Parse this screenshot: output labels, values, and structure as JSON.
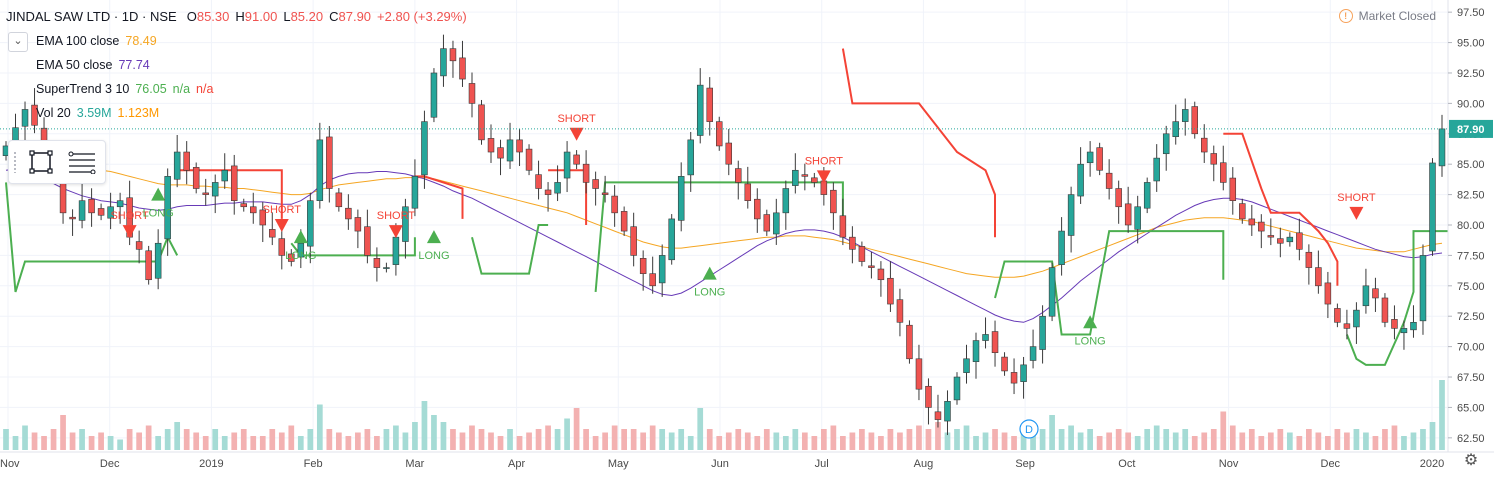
{
  "header": {
    "symbol_line": "JINDAL SAW LTD · 1D · NSE",
    "ohlc": [
      {
        "label": "O",
        "value": "85.30"
      },
      {
        "label": "H",
        "value": "91.00"
      },
      {
        "label": "L",
        "value": "85.20"
      },
      {
        "label": "C",
        "value": "87.90"
      }
    ],
    "change": "+2.80 (+3.29%)",
    "market_status": "Market Closed"
  },
  "indicators": {
    "ema100": {
      "name": "EMA 100 close",
      "value": "78.49",
      "color": "#f5a623"
    },
    "ema50": {
      "name": "EMA 50 close",
      "value": "77.74",
      "color": "#673ab7"
    },
    "supertrend": {
      "name": "SuperTrend 3 10",
      "v1": "76.05",
      "v2": "n/a",
      "v3": "n/a",
      "up_color": "#4caf50",
      "down_color": "#f44336"
    },
    "vol": {
      "name": "Vol 20",
      "v1": "3.59M",
      "v2": "1.123M",
      "v1_color": "#26a69a",
      "v2_color": "#ff9800"
    }
  },
  "toolbar": {
    "chevron_icon": "chevron-down-icon",
    "rect_tool_icon": "rectangle-tool-icon",
    "lines_tool_icon": "horizontal-lines-tool-icon"
  },
  "settings_icon": "gear-icon",
  "dividend_marker": "D",
  "last_price_label": "87.90",
  "colors": {
    "up": "#26a69a",
    "down": "#ef5350",
    "vol_up": "#a5dbd5",
    "vol_down": "#f3b1b1",
    "long": "#4caf50",
    "short": "#f44336",
    "ema100": "#f5a623",
    "ema50": "#673ab7"
  },
  "chart_data": {
    "type": "candlestick",
    "ylim": [
      61.5,
      98.5
    ],
    "y_ticks": [
      62.5,
      65.0,
      67.5,
      70.0,
      72.5,
      75.0,
      77.5,
      80.0,
      82.5,
      85.0,
      87.5,
      90.0,
      92.5,
      95.0,
      97.5
    ],
    "x_month_labels": [
      "Nov",
      "Dec",
      "2019",
      "Feb",
      "Mar",
      "Apr",
      "May",
      "Jun",
      "Jul",
      "Aug",
      "Sep",
      "Oct",
      "Nov",
      "Dec",
      "2020"
    ],
    "last_close": 87.9,
    "closes": [
      86.5,
      88.0,
      89.5,
      88.2,
      86.0,
      84.0,
      81.0,
      80.5,
      82.0,
      81.0,
      80.8,
      81.5,
      82.0,
      79.0,
      78.0,
      75.5,
      78.5,
      84.0,
      86.0,
      84.5,
      83.0,
      82.5,
      83.5,
      84.5,
      82.0,
      81.5,
      81.0,
      80.0,
      79.0,
      77.5,
      77.0,
      78.5,
      82.0,
      87.0,
      83.0,
      81.5,
      80.5,
      79.5,
      77.5,
      76.5,
      76.5,
      79.0,
      81.5,
      84.0,
      88.5,
      92.5,
      94.5,
      93.5,
      92.0,
      90.0,
      87.0,
      86.0,
      85.5,
      87.0,
      86.0,
      84.5,
      83.0,
      82.5,
      83.5,
      86.0,
      85.0,
      83.5,
      83.0,
      82.5,
      81.0,
      79.5,
      77.5,
      76.0,
      75.0,
      77.5,
      80.5,
      84.0,
      87.0,
      91.5,
      88.5,
      86.5,
      85.0,
      83.5,
      82.0,
      80.5,
      79.5,
      81.0,
      83.0,
      84.5,
      84.0,
      83.5,
      82.5,
      81.0,
      79.0,
      78.0,
      77.0,
      76.5,
      75.5,
      73.5,
      72.0,
      69.0,
      66.5,
      65.0,
      64.0,
      65.5,
      67.5,
      69.0,
      70.5,
      71.0,
      69.5,
      68.0,
      67.0,
      68.5,
      70.0,
      72.5,
      76.5,
      79.5,
      82.5,
      85.0,
      86.0,
      84.5,
      83.0,
      81.5,
      80.0,
      81.5,
      83.5,
      85.5,
      87.5,
      88.5,
      89.5,
      87.5,
      86.0,
      85.0,
      83.5,
      82.0,
      80.5,
      80.0,
      79.5,
      79.0,
      78.5,
      79.0,
      78.0,
      76.5,
      75.0,
      73.5,
      72.0,
      71.5,
      73.0,
      75.0,
      74.0,
      72.0,
      71.5,
      71.5,
      72.0,
      77.5,
      85.1,
      87.9
    ],
    "ema50": [
      84.5,
      84.6,
      84.5,
      84.2,
      83.8,
      83.4,
      83.0,
      82.7,
      82.4,
      82.2,
      82.0,
      81.9,
      81.8,
      81.6,
      81.4,
      81.3,
      81.2,
      81.3,
      81.5,
      81.6,
      81.6,
      81.6,
      81.7,
      81.8,
      81.8,
      81.9,
      81.9,
      81.9,
      81.8,
      81.7,
      81.7,
      82.0,
      82.5,
      83.2,
      83.7,
      84.0,
      84.2,
      84.3,
      84.3,
      84.4,
      84.4,
      84.3,
      84.2,
      84.0,
      83.8,
      83.5,
      83.2,
      82.8,
      82.5,
      82.2,
      81.8,
      81.4,
      81.0,
      80.6,
      80.2,
      79.8,
      79.4,
      79.0,
      78.6,
      78.2,
      77.8,
      77.4,
      77.0,
      76.6,
      76.2,
      75.8,
      75.4,
      75.0,
      74.6,
      74.3,
      74.2,
      74.4,
      74.8,
      75.3,
      75.8,
      76.3,
      76.8,
      77.3,
      77.8,
      78.3,
      78.7,
      79.0,
      79.3,
      79.5,
      79.6,
      79.6,
      79.5,
      79.3,
      79.0,
      78.6,
      78.2,
      77.8,
      77.4,
      77.0,
      76.6,
      76.2,
      75.8,
      75.4,
      75.0,
      74.6,
      74.2,
      73.8,
      73.4,
      73.0,
      72.6,
      72.3,
      72.1,
      72.0,
      72.3,
      72.8,
      73.4,
      74.0,
      74.7,
      75.4,
      76.0,
      76.6,
      77.2,
      77.8,
      78.3,
      78.8,
      79.3,
      79.8,
      80.3,
      80.8,
      81.2,
      81.6,
      81.9,
      82.1,
      82.2,
      82.2,
      82.1,
      81.9,
      81.6,
      81.3,
      81.0,
      80.7,
      80.4,
      80.1,
      79.8,
      79.5,
      79.2,
      78.9,
      78.6,
      78.3,
      78.0,
      77.8,
      77.6,
      77.4,
      77.3,
      77.4,
      77.6,
      77.7
    ],
    "ema100": [
      86.0,
      86.0,
      85.9,
      85.8,
      85.7,
      85.5,
      85.3,
      85.1,
      84.9,
      84.7,
      84.5,
      84.4,
      84.2,
      84.0,
      83.8,
      83.6,
      83.4,
      83.3,
      83.3,
      83.3,
      83.2,
      83.2,
      83.1,
      83.1,
      83.0,
      83.0,
      82.9,
      82.8,
      82.7,
      82.6,
      82.5,
      82.5,
      82.6,
      82.9,
      83.1,
      83.3,
      83.4,
      83.5,
      83.6,
      83.7,
      83.8,
      83.8,
      83.9,
      83.9,
      83.9,
      83.8,
      83.6,
      83.4,
      83.2,
      83.0,
      82.8,
      82.6,
      82.4,
      82.2,
      82.0,
      81.8,
      81.6,
      81.4,
      81.2,
      81.0,
      80.7,
      80.4,
      80.1,
      79.8,
      79.5,
      79.2,
      78.9,
      78.6,
      78.4,
      78.2,
      78.1,
      78.1,
      78.2,
      78.3,
      78.4,
      78.5,
      78.6,
      78.7,
      78.8,
      78.9,
      79.0,
      79.0,
      79.1,
      79.1,
      79.1,
      79.0,
      78.9,
      78.8,
      78.6,
      78.4,
      78.2,
      78.0,
      77.8,
      77.6,
      77.4,
      77.2,
      77.0,
      76.8,
      76.6,
      76.4,
      76.2,
      76.0,
      75.9,
      75.8,
      75.7,
      75.7,
      75.7,
      75.8,
      76.0,
      76.2,
      76.5,
      76.8,
      77.1,
      77.4,
      77.7,
      78.0,
      78.3,
      78.6,
      78.9,
      79.2,
      79.5,
      79.8,
      80.0,
      80.2,
      80.4,
      80.5,
      80.6,
      80.6,
      80.6,
      80.5,
      80.4,
      80.3,
      80.1,
      79.9,
      79.7,
      79.5,
      79.3,
      79.1,
      78.9,
      78.7,
      78.5,
      78.3,
      78.1,
      78.0,
      77.9,
      77.8,
      77.8,
      77.8,
      78.0,
      78.2,
      78.4,
      78.5
    ],
    "supertrend_segments": [
      {
        "dir": "long",
        "points": [
          [
            0,
            83.5
          ],
          [
            1,
            74.5
          ],
          [
            2,
            77.0
          ],
          [
            16,
            77.0
          ],
          [
            17,
            79.0
          ],
          [
            18,
            77.5
          ]
        ]
      },
      {
        "dir": "short",
        "points": [
          [
            18,
            84.5
          ],
          [
            19,
            84.5
          ],
          [
            22,
            84.5
          ],
          [
            25,
            84.5
          ],
          [
            29,
            84.5
          ],
          [
            29,
            80.5
          ]
        ]
      },
      {
        "dir": "long",
        "points": [
          [
            30,
            78.5
          ],
          [
            31,
            77.5
          ],
          [
            43,
            77.5
          ],
          [
            43,
            79.0
          ]
        ]
      },
      {
        "dir": "short",
        "points": [
          [
            43,
            84.0
          ],
          [
            44,
            84.0
          ],
          [
            48,
            83.0
          ],
          [
            48,
            80.5
          ]
        ]
      },
      {
        "dir": "long",
        "points": [
          [
            49,
            79.0
          ],
          [
            50,
            76.0
          ],
          [
            55,
            76.0
          ],
          [
            56,
            80.0
          ],
          [
            57,
            80.0
          ]
        ]
      },
      {
        "dir": "short",
        "points": [
          [
            57,
            84.5
          ],
          [
            61,
            84.5
          ],
          [
            61,
            80.0
          ]
        ]
      },
      {
        "dir": "long",
        "points": [
          [
            62,
            74.5
          ],
          [
            63,
            83.5
          ],
          [
            88,
            83.5
          ],
          [
            88,
            80.0
          ]
        ]
      },
      {
        "dir": "short",
        "points": [
          [
            88,
            94.5
          ],
          [
            89,
            90.0
          ],
          [
            96,
            90.0
          ],
          [
            100,
            86.0
          ],
          [
            103,
            84.5
          ],
          [
            104,
            82.5
          ],
          [
            104,
            79.0
          ]
        ]
      },
      {
        "dir": "long",
        "points": [
          [
            104,
            74.0
          ],
          [
            105,
            77.0
          ],
          [
            110,
            77.0
          ],
          [
            111,
            71.0
          ],
          [
            114,
            71.0
          ],
          [
            116,
            79.5
          ],
          [
            128,
            79.5
          ],
          [
            128,
            75.5
          ]
        ]
      },
      {
        "dir": "short",
        "points": [
          [
            128,
            87.5
          ],
          [
            130,
            87.5
          ],
          [
            132,
            83.0
          ],
          [
            133,
            81.0
          ],
          [
            136,
            81.0
          ],
          [
            138,
            79.5
          ],
          [
            139,
            78.5
          ],
          [
            140,
            77.0
          ],
          [
            140,
            75.0
          ]
        ]
      },
      {
        "dir": "long",
        "points": [
          [
            141,
            71.0
          ],
          [
            142,
            69.0
          ],
          [
            143,
            68.5
          ],
          [
            145,
            68.5
          ],
          [
            147,
            72.0
          ],
          [
            148,
            74.5
          ],
          [
            148,
            79.5
          ],
          [
            152,
            79.5
          ],
          [
            155,
            79.5
          ]
        ]
      }
    ],
    "signals": [
      {
        "type": "short",
        "i": 13,
        "price": 79.5,
        "label": "SHORT"
      },
      {
        "type": "long",
        "i": 16,
        "price": 82.5,
        "label": "LONG"
      },
      {
        "type": "short",
        "i": 29,
        "price": 80.0,
        "label": "SHORT"
      },
      {
        "type": "long",
        "i": 31,
        "price": 79.0,
        "label": "LONG"
      },
      {
        "type": "short",
        "i": 41,
        "price": 79.5,
        "label": "SHORT"
      },
      {
        "type": "long",
        "i": 45,
        "price": 79.0,
        "label": "LONG"
      },
      {
        "type": "short",
        "i": 60,
        "price": 87.5,
        "label": "SHORT"
      },
      {
        "type": "long",
        "i": 74,
        "price": 76.0,
        "label": "LONG"
      },
      {
        "type": "short",
        "i": 86,
        "price": 84.0,
        "label": "SHORT"
      },
      {
        "type": "long",
        "i": 114,
        "price": 72.0,
        "label": "LONG"
      },
      {
        "type": "short",
        "i": 142,
        "price": 81.0,
        "label": "SHORT"
      },
      {
        "type": "long",
        "i": 157,
        "price": 72.0,
        "label": "LONG"
      }
    ],
    "volume_relative": [
      0.3,
      0.2,
      0.35,
      0.25,
      0.2,
      0.3,
      0.5,
      0.25,
      0.3,
      0.2,
      0.25,
      0.2,
      0.15,
      0.3,
      0.25,
      0.35,
      0.2,
      0.3,
      0.4,
      0.3,
      0.25,
      0.2,
      0.3,
      0.2,
      0.25,
      0.3,
      0.2,
      0.2,
      0.3,
      0.25,
      0.35,
      0.2,
      0.3,
      0.65,
      0.3,
      0.25,
      0.2,
      0.25,
      0.3,
      0.2,
      0.3,
      0.35,
      0.25,
      0.4,
      0.7,
      0.5,
      0.4,
      0.3,
      0.25,
      0.35,
      0.3,
      0.25,
      0.2,
      0.3,
      0.2,
      0.25,
      0.3,
      0.35,
      0.3,
      0.45,
      0.6,
      0.3,
      0.2,
      0.25,
      0.35,
      0.3,
      0.3,
      0.25,
      0.35,
      0.3,
      0.25,
      0.3,
      0.2,
      0.6,
      0.3,
      0.2,
      0.25,
      0.3,
      0.25,
      0.2,
      0.3,
      0.25,
      0.2,
      0.3,
      0.25,
      0.2,
      0.3,
      0.35,
      0.2,
      0.25,
      0.3,
      0.25,
      0.2,
      0.3,
      0.25,
      0.3,
      0.35,
      0.3,
      0.4,
      0.25,
      0.3,
      0.35,
      0.2,
      0.25,
      0.3,
      0.25,
      0.2,
      0.3,
      0.25,
      0.3,
      0.5,
      0.3,
      0.35,
      0.25,
      0.3,
      0.2,
      0.25,
      0.3,
      0.25,
      0.2,
      0.3,
      0.35,
      0.3,
      0.25,
      0.3,
      0.2,
      0.25,
      0.3,
      0.55,
      0.35,
      0.25,
      0.3,
      0.2,
      0.25,
      0.3,
      0.25,
      0.2,
      0.3,
      0.25,
      0.2,
      0.3,
      0.25,
      0.3,
      0.25,
      0.2,
      0.3,
      0.35,
      0.2,
      0.25,
      0.3,
      0.4,
      1.0,
      0.95,
      0.6
    ]
  }
}
